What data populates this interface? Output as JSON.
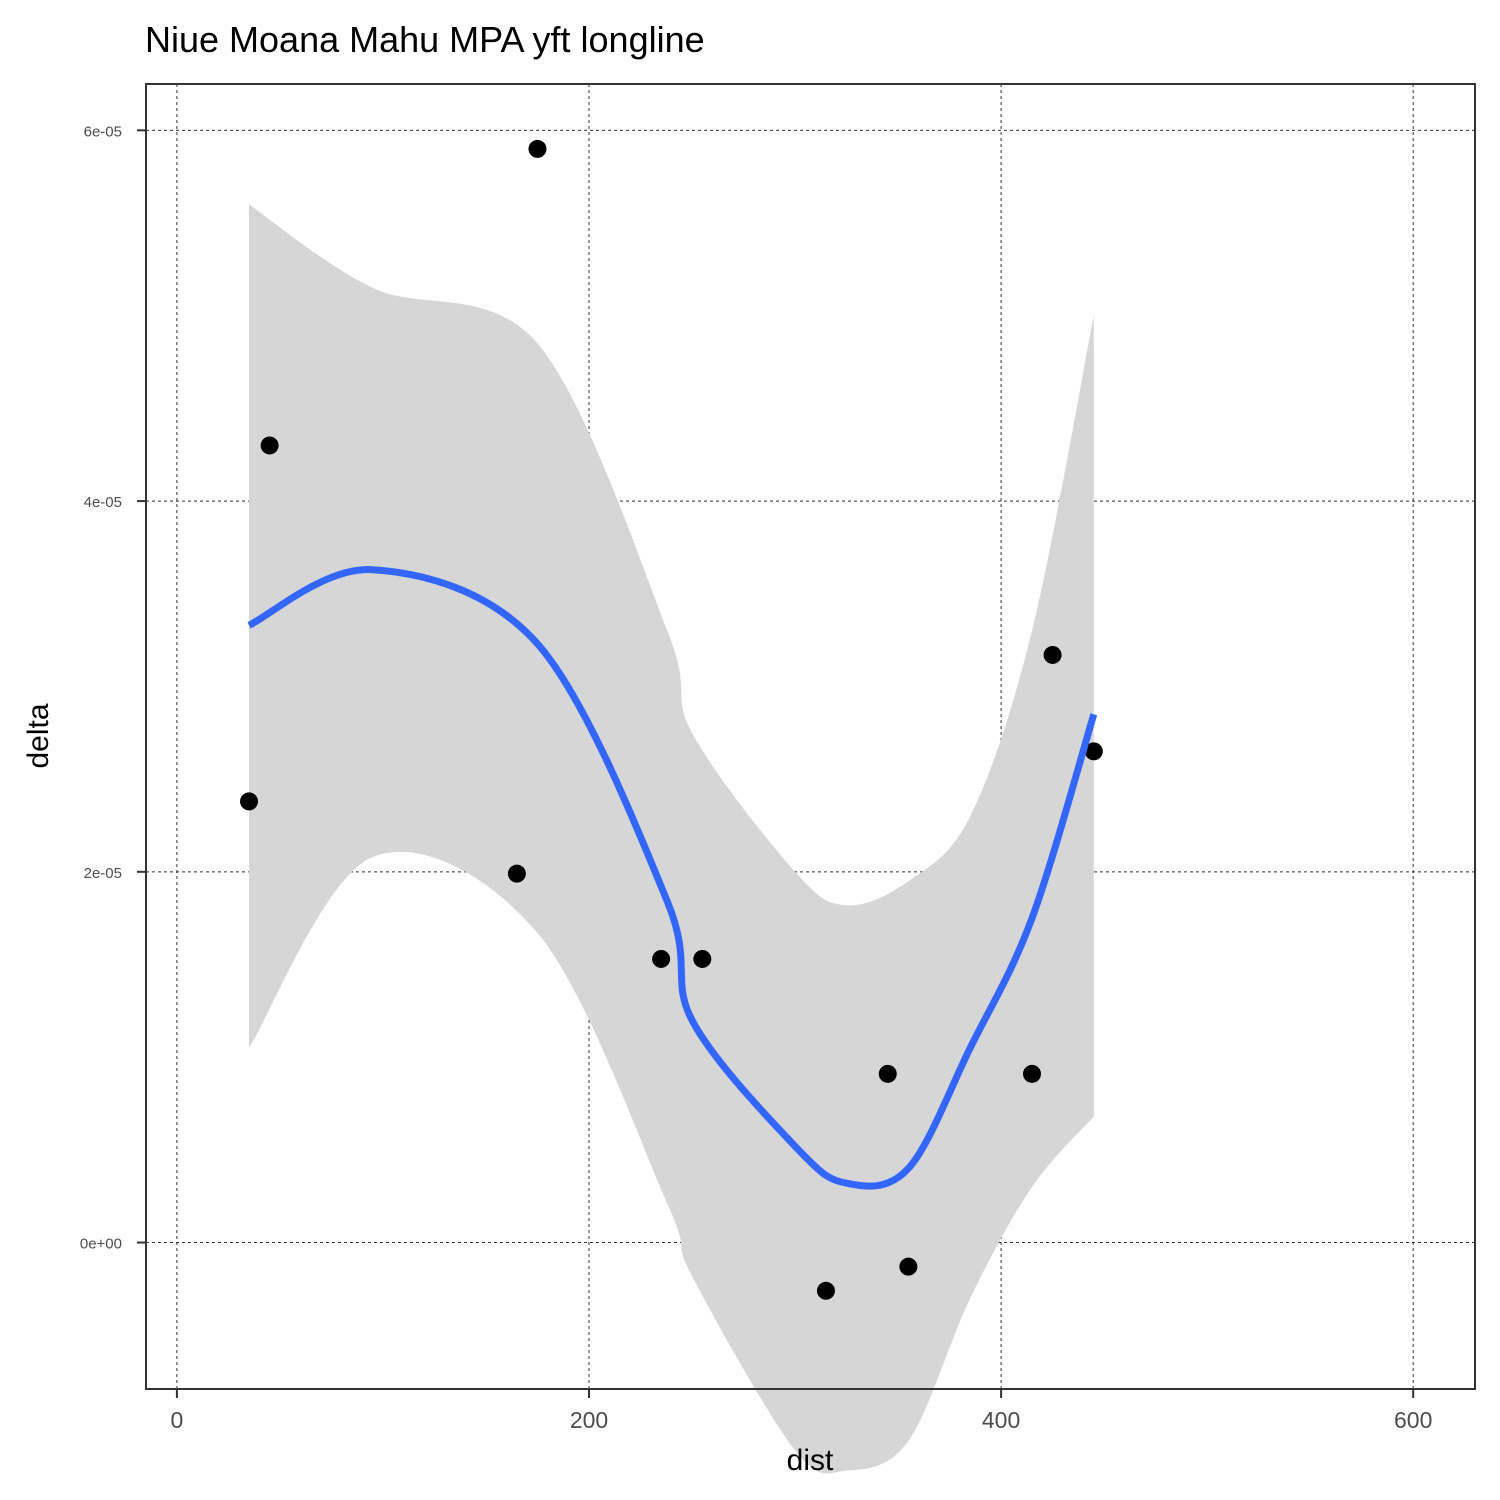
{
  "chart_data": {
    "type": "scatter",
    "title": "Niue Moana Mahu MPA yft longline",
    "xlabel": "dist",
    "ylabel": "delta",
    "xlim": [
      -15,
      630
    ],
    "ylim": [
      -7.9e-06,
      6.25e-05
    ],
    "x_ticks": [
      0,
      200,
      400,
      600
    ],
    "x_tick_labels": [
      "0",
      "200",
      "400",
      "600"
    ],
    "y_ticks": [
      0,
      2e-05,
      4e-05,
      6e-05
    ],
    "y_tick_labels": [
      "0e+00",
      "2e-05",
      "4e-05",
      "6e-05"
    ],
    "grid": true,
    "grid_style": "dashed",
    "points": [
      {
        "x": 35,
        "y": 2.38e-05
      },
      {
        "x": 45,
        "y": 4.3e-05
      },
      {
        "x": 165,
        "y": 1.99e-05
      },
      {
        "x": 175,
        "y": 5.9e-05
      },
      {
        "x": 235,
        "y": 1.53e-05
      },
      {
        "x": 255,
        "y": 1.53e-05
      },
      {
        "x": 315,
        "y": -2.6e-06
      },
      {
        "x": 345,
        "y": 9.1e-06
      },
      {
        "x": 355,
        "y": -1.3e-06
      },
      {
        "x": 415,
        "y": 9.1e-06
      },
      {
        "x": 425,
        "y": 3.17e-05
      },
      {
        "x": 445,
        "y": 2.65e-05
      }
    ],
    "smooth": {
      "method": "loess",
      "color": "#3366FF",
      "fill": "#D6D6D6",
      "x": [
        35,
        95,
        175,
        238,
        250,
        300,
        325,
        355,
        385,
        415,
        445
      ],
      "y": [
        3.33e-05,
        3.63e-05,
        3.23e-05,
        1.84e-05,
        1.2e-05,
        5.2e-06,
        3.2e-06,
        4e-06,
        1.05e-05,
        1.75e-05,
        2.85e-05
      ],
      "ymin": [
        1.05e-05,
        2.08e-05,
        1.67e-05,
        2.1e-06,
        -1.8e-06,
        -1.12e-05,
        -1.23e-05,
        -1.07e-05,
        -3e-06,
        3e-06,
        6.8e-06
      ],
      "ymax": [
        5.6e-05,
        5.15e-05,
        4.85e-05,
        3.3e-05,
        2.75e-05,
        2e-05,
        1.82e-05,
        1.95e-05,
        2.3e-05,
        3.3e-05,
        5e-05
      ]
    },
    "point_color": "#000000"
  }
}
